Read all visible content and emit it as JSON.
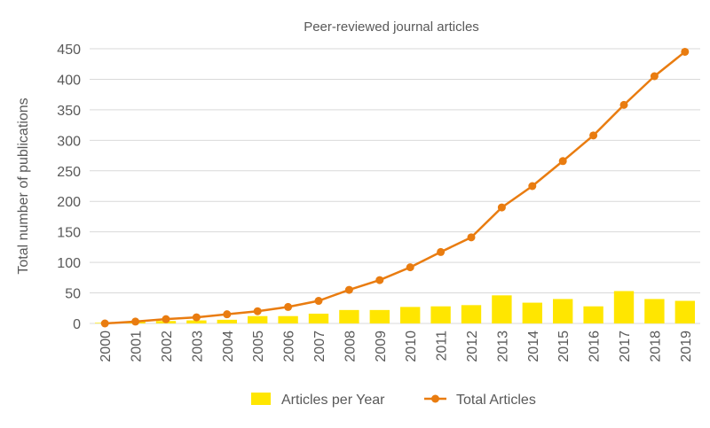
{
  "chart_data": {
    "type": "bar",
    "title": "Peer-reviewed journal articles",
    "xlabel": "",
    "ylabel": "Total number of publications",
    "categories": [
      "2000",
      "2001",
      "2002",
      "2003",
      "2004",
      "2005",
      "2006",
      "2007",
      "2008",
      "2009",
      "2010",
      "2011",
      "2012",
      "2013",
      "2014",
      "2015",
      "2016",
      "2017",
      "2018",
      "2019"
    ],
    "series": [
      {
        "name": "Articles per Year",
        "type": "bar",
        "color": "#ffe600",
        "values": [
          1,
          3,
          4,
          5,
          6,
          12,
          12,
          16,
          22,
          22,
          27,
          28,
          30,
          46,
          34,
          40,
          28,
          53,
          40,
          37
        ]
      },
      {
        "name": "Total Articles",
        "type": "line",
        "color": "#e97c10",
        "values": [
          0,
          3,
          7,
          10,
          15,
          20,
          27,
          37,
          55,
          71,
          92,
          117,
          141,
          190,
          225,
          266,
          308,
          358,
          405,
          445
        ]
      }
    ],
    "ylim": [
      0,
      450
    ],
    "yticks": [
      0,
      50,
      100,
      150,
      200,
      250,
      300,
      350,
      400,
      450
    ],
    "grid": true,
    "legend_position": "bottom"
  }
}
